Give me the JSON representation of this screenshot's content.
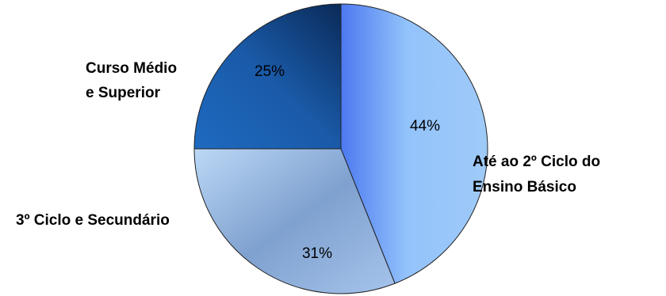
{
  "chart_data": {
    "type": "pie",
    "title": "",
    "legend": "none",
    "slices": [
      {
        "label_lines": [
          "Até ao 2º Ciclo do",
          "Ensino Básico"
        ],
        "value": 44,
        "value_label": "44%",
        "color": "#8fbdf6"
      },
      {
        "label_lines": [
          "3º Ciclo e Secundário"
        ],
        "value": 31,
        "value_label": "31%",
        "color": "#a7c8ef"
      },
      {
        "label_lines": [
          "Curso Médio",
          "e Superior"
        ],
        "value": 25,
        "value_label": "25%",
        "color": "#1a5dae"
      }
    ]
  }
}
